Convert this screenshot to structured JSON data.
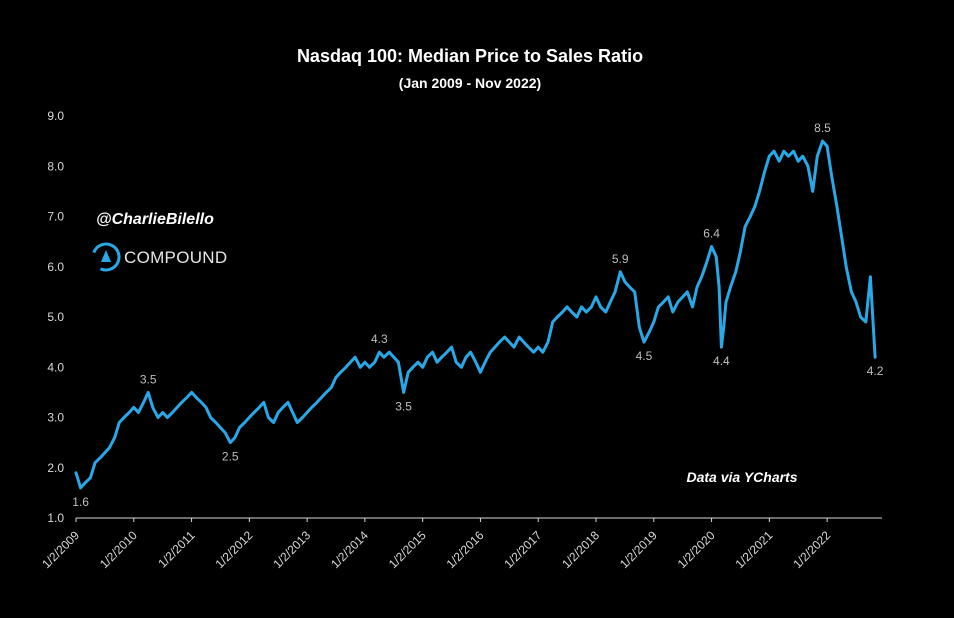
{
  "chart_data": {
    "type": "line",
    "title": "Nasdaq 100: Median Price to Sales Ratio",
    "subtitle": "(Jan 2009 - Nov 2022)",
    "xlabel": "",
    "ylabel": "",
    "ylim": [
      1.0,
      9.0
    ],
    "yticks": [
      "1.0",
      "2.0",
      "3.0",
      "4.0",
      "5.0",
      "6.0",
      "7.0",
      "8.0",
      "9.0"
    ],
    "xticks": [
      "1/2/2009",
      "1/2/2010",
      "1/2/2011",
      "1/2/2012",
      "1/2/2013",
      "1/2/2014",
      "1/2/2015",
      "1/2/2016",
      "1/2/2017",
      "1/2/2018",
      "1/2/2019",
      "1/2/2020",
      "1/2/2021",
      "1/2/2022"
    ],
    "grid": false,
    "line_color": "#29a8e8",
    "series": [
      {
        "x": [
          2009.0,
          2009.08,
          2009.16,
          2009.25,
          2009.33,
          2009.42,
          2009.5,
          2009.58,
          2009.67,
          2009.75,
          2009.83,
          2009.92,
          2010.0,
          2010.08,
          2010.17,
          2010.25,
          2010.33,
          2010.42,
          2010.5,
          2010.58,
          2010.67,
          2010.75,
          2010.83,
          2010.92,
          2011.0,
          2011.08,
          2011.17,
          2011.25,
          2011.33,
          2011.42,
          2011.5,
          2011.58,
          2011.67,
          2011.75,
          2011.83,
          2011.92,
          2012.0,
          2012.08,
          2012.17,
          2012.25,
          2012.33,
          2012.42,
          2012.5,
          2012.58,
          2012.67,
          2012.75,
          2012.83,
          2012.92,
          2013.0,
          2013.08,
          2013.17,
          2013.25,
          2013.33,
          2013.42,
          2013.5,
          2013.58,
          2013.67,
          2013.75,
          2013.83,
          2013.92,
          2014.0,
          2014.08,
          2014.17,
          2014.25,
          2014.33,
          2014.42,
          2014.5,
          2014.58,
          2014.67,
          2014.75,
          2014.83,
          2014.92,
          2015.0,
          2015.08,
          2015.17,
          2015.25,
          2015.33,
          2015.42,
          2015.5,
          2015.58,
          2015.67,
          2015.75,
          2015.83,
          2015.92,
          2016.0,
          2016.08,
          2016.17,
          2016.25,
          2016.33,
          2016.42,
          2016.5,
          2016.58,
          2016.67,
          2016.75,
          2016.83,
          2016.92,
          2017.0,
          2017.08,
          2017.17,
          2017.25,
          2017.33,
          2017.42,
          2017.5,
          2017.58,
          2017.67,
          2017.75,
          2017.83,
          2017.92,
          2018.0,
          2018.08,
          2018.17,
          2018.25,
          2018.33,
          2018.42,
          2018.5,
          2018.58,
          2018.67,
          2018.75,
          2018.83,
          2018.92,
          2019.0,
          2019.08,
          2019.17,
          2019.25,
          2019.33,
          2019.42,
          2019.5,
          2019.58,
          2019.67,
          2019.75,
          2019.83,
          2019.92,
          2020.0,
          2020.08,
          2020.13,
          2020.17,
          2020.21,
          2020.25,
          2020.33,
          2020.42,
          2020.5,
          2020.58,
          2020.67,
          2020.75,
          2020.83,
          2020.92,
          2021.0,
          2021.08,
          2021.17,
          2021.25,
          2021.33,
          2021.42,
          2021.5,
          2021.58,
          2021.67,
          2021.75,
          2021.83,
          2021.92,
          2022.0,
          2022.08,
          2022.17,
          2022.25,
          2022.33,
          2022.42,
          2022.5,
          2022.58,
          2022.67,
          2022.75,
          2022.83
        ],
        "y": [
          1.9,
          1.6,
          1.7,
          1.8,
          2.1,
          2.2,
          2.3,
          2.4,
          2.6,
          2.9,
          3.0,
          3.1,
          3.2,
          3.1,
          3.3,
          3.5,
          3.2,
          3.0,
          3.1,
          3.0,
          3.1,
          3.2,
          3.3,
          3.4,
          3.5,
          3.4,
          3.3,
          3.2,
          3.0,
          2.9,
          2.8,
          2.7,
          2.5,
          2.6,
          2.8,
          2.9,
          3.0,
          3.1,
          3.2,
          3.3,
          3.0,
          2.9,
          3.1,
          3.2,
          3.3,
          3.1,
          2.9,
          3.0,
          3.1,
          3.2,
          3.3,
          3.4,
          3.5,
          3.6,
          3.8,
          3.9,
          4.0,
          4.1,
          4.2,
          4.0,
          4.1,
          4.0,
          4.1,
          4.3,
          4.2,
          4.3,
          4.2,
          4.1,
          3.5,
          3.9,
          4.0,
          4.1,
          4.0,
          4.2,
          4.3,
          4.1,
          4.2,
          4.3,
          4.4,
          4.1,
          4.0,
          4.2,
          4.3,
          4.1,
          3.9,
          4.1,
          4.3,
          4.4,
          4.5,
          4.6,
          4.5,
          4.4,
          4.6,
          4.5,
          4.4,
          4.3,
          4.4,
          4.3,
          4.5,
          4.9,
          5.0,
          5.1,
          5.2,
          5.1,
          5.0,
          5.2,
          5.1,
          5.2,
          5.4,
          5.2,
          5.1,
          5.3,
          5.5,
          5.9,
          5.7,
          5.6,
          5.5,
          4.8,
          4.5,
          4.7,
          4.9,
          5.2,
          5.3,
          5.4,
          5.1,
          5.3,
          5.4,
          5.5,
          5.2,
          5.6,
          5.8,
          6.1,
          6.4,
          6.2,
          5.6,
          4.4,
          4.8,
          5.3,
          5.6,
          5.9,
          6.3,
          6.8,
          7.0,
          7.2,
          7.5,
          7.9,
          8.2,
          8.3,
          8.1,
          8.3,
          8.2,
          8.3,
          8.1,
          8.2,
          8.0,
          7.5,
          8.2,
          8.5,
          8.4,
          7.8,
          7.2,
          6.6,
          6.0,
          5.5,
          5.3,
          5.0,
          4.9,
          5.8,
          4.2
        ]
      }
    ],
    "annotations": [
      {
        "label": "1.6",
        "x": 2009.08,
        "y": 1.6,
        "pos": "below"
      },
      {
        "label": "3.5",
        "x": 2010.25,
        "y": 3.5,
        "pos": "above"
      },
      {
        "label": "2.5",
        "x": 2011.67,
        "y": 2.5,
        "pos": "below"
      },
      {
        "label": "4.3",
        "x": 2014.25,
        "y": 4.3,
        "pos": "above"
      },
      {
        "label": "3.5",
        "x": 2014.67,
        "y": 3.5,
        "pos": "below"
      },
      {
        "label": "5.9",
        "x": 2018.42,
        "y": 5.9,
        "pos": "above"
      },
      {
        "label": "4.5",
        "x": 2018.83,
        "y": 4.5,
        "pos": "below"
      },
      {
        "label": "6.4",
        "x": 2020.0,
        "y": 6.4,
        "pos": "above"
      },
      {
        "label": "4.4",
        "x": 2020.17,
        "y": 4.4,
        "pos": "below"
      },
      {
        "label": "8.5",
        "x": 2021.92,
        "y": 8.5,
        "pos": "above"
      },
      {
        "label": "4.2",
        "x": 2022.83,
        "y": 4.2,
        "pos": "below"
      }
    ],
    "source_note": "Data via YCharts"
  },
  "watermark": {
    "handle": "@CharlieBilello",
    "brand": "COMPOUND"
  }
}
